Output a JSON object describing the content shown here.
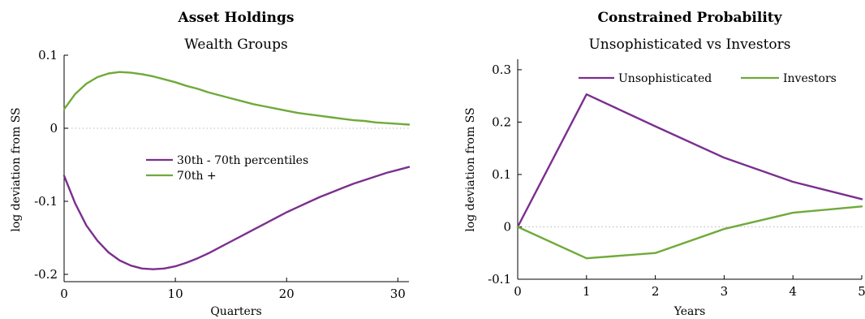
{
  "chart_data": [
    {
      "type": "line",
      "title": "Asset Holdings",
      "subtitle": "Wealth Groups",
      "xlabel": "Quarters",
      "ylabel": "log deviation from SS",
      "xlim": [
        0,
        31
      ],
      "ylim": [
        -0.21,
        0.1
      ],
      "xticks": [
        0,
        10,
        20,
        30
      ],
      "xtick_labels": [
        "0",
        "10",
        "20",
        "30"
      ],
      "yticks": [
        0.1,
        0,
        -0.1,
        -0.2
      ],
      "ytick_labels": [
        "0.1",
        "0",
        "-0.1",
        "-0.2"
      ],
      "zero_line": true,
      "grid": false,
      "legend_position": "center",
      "series": [
        {
          "name": "30th - 70th percentiles",
          "color": "#7B2F8E",
          "x": [
            0,
            1,
            2,
            3,
            4,
            5,
            6,
            7,
            8,
            9,
            10,
            11,
            12,
            13,
            14,
            15,
            16,
            17,
            18,
            19,
            20,
            21,
            22,
            23,
            24,
            25,
            26,
            27,
            28,
            29,
            30,
            31
          ],
          "y": [
            -0.065,
            -0.103,
            -0.133,
            -0.154,
            -0.17,
            -0.181,
            -0.188,
            -0.192,
            -0.193,
            -0.192,
            -0.189,
            -0.184,
            -0.178,
            -0.171,
            -0.163,
            -0.155,
            -0.147,
            -0.139,
            -0.131,
            -0.123,
            -0.115,
            -0.108,
            -0.101,
            -0.094,
            -0.088,
            -0.082,
            -0.076,
            -0.071,
            -0.066,
            -0.061,
            -0.057,
            -0.053
          ]
        },
        {
          "name": "70th +",
          "color": "#6FAA3A",
          "x": [
            0,
            1,
            2,
            3,
            4,
            5,
            6,
            7,
            8,
            9,
            10,
            11,
            12,
            13,
            14,
            15,
            16,
            17,
            18,
            19,
            20,
            21,
            22,
            23,
            24,
            25,
            26,
            27,
            28,
            29,
            30,
            31
          ],
          "y": [
            0.026,
            0.047,
            0.061,
            0.07,
            0.075,
            0.077,
            0.076,
            0.074,
            0.071,
            0.067,
            0.063,
            0.058,
            0.054,
            0.049,
            0.045,
            0.041,
            0.037,
            0.033,
            0.03,
            0.027,
            0.024,
            0.021,
            0.019,
            0.017,
            0.015,
            0.013,
            0.011,
            0.01,
            0.008,
            0.007,
            0.006,
            0.005
          ]
        }
      ]
    },
    {
      "type": "line",
      "title": "Constrained Probability",
      "subtitle": "Unsophisticated vs Investors",
      "xlabel": "Years",
      "ylabel": "log deviation from SS",
      "xlim": [
        0,
        5
      ],
      "ylim": [
        -0.1,
        0.32
      ],
      "xticks": [
        0,
        1,
        2,
        3,
        4,
        5
      ],
      "xtick_labels": [
        "0",
        "1",
        "2",
        "3",
        "4",
        "5"
      ],
      "yticks": [
        0.3,
        0.2,
        0.1,
        0,
        -0.1
      ],
      "ytick_labels": [
        "0.3",
        "0.2",
        "0.1",
        "0",
        "-0.1"
      ],
      "zero_line": true,
      "grid": false,
      "legend_position": "top",
      "series": [
        {
          "name": "Unsophisticated",
          "color": "#7B2F8E",
          "x": [
            0,
            1,
            2,
            3,
            4,
            5
          ],
          "y": [
            0,
            0.253,
            0.192,
            0.132,
            0.086,
            0.053
          ]
        },
        {
          "name": "Investors",
          "color": "#6FAA3A",
          "x": [
            0,
            1,
            2,
            3,
            4,
            5
          ],
          "y": [
            0,
            -0.06,
            -0.05,
            -0.004,
            0.027,
            0.039
          ]
        }
      ]
    }
  ]
}
